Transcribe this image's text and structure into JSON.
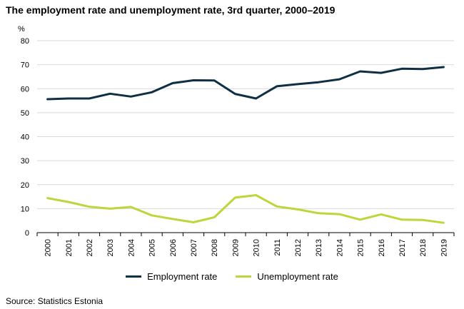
{
  "chart_data": {
    "type": "line",
    "title": "The employment rate and unemployment rate, 3rd quarter, 2000–2019",
    "ylabel": "%",
    "xlabel": "",
    "ylim": [
      0,
      80
    ],
    "yticks": [
      0,
      10,
      20,
      30,
      40,
      50,
      60,
      70,
      80
    ],
    "grid": true,
    "legend_position": "bottom",
    "categories": [
      "2000",
      "2001",
      "2002",
      "2003",
      "2004",
      "2005",
      "2006",
      "2007",
      "2008",
      "2009",
      "2010",
      "2011",
      "2012",
      "2013",
      "2014",
      "2015",
      "2016",
      "2017",
      "2018",
      "2019"
    ],
    "series": [
      {
        "name": "Employment rate",
        "color": "#0e2f44",
        "values": [
          55.6,
          55.9,
          55.9,
          57.9,
          56.7,
          58.5,
          62.3,
          63.5,
          63.4,
          57.8,
          55.9,
          61.0,
          61.9,
          62.7,
          63.9,
          67.2,
          66.6,
          68.3,
          68.2,
          69.0
        ]
      },
      {
        "name": "Unemployment rate",
        "color": "#bdd63b",
        "values": [
          14.4,
          12.8,
          10.8,
          10.0,
          10.7,
          7.2,
          5.7,
          4.3,
          6.4,
          14.6,
          15.6,
          10.9,
          9.7,
          8.1,
          7.7,
          5.4,
          7.6,
          5.4,
          5.3,
          4.1
        ]
      }
    ]
  },
  "source": "Source: Statistics Estonia"
}
